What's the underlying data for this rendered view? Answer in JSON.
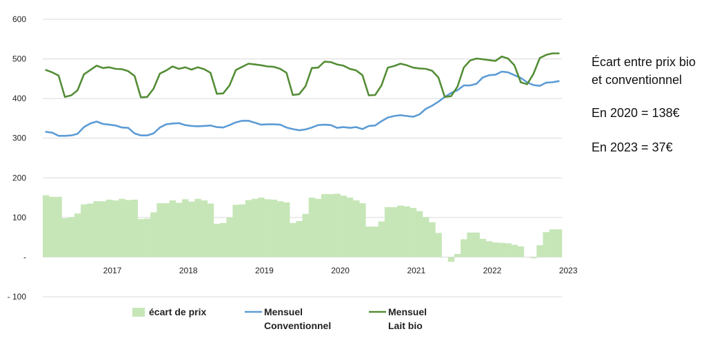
{
  "chart_data": {
    "type": "line",
    "ylim": [
      -100,
      600
    ],
    "yticks": [
      {
        "value": 600,
        "label": "600"
      },
      {
        "value": 500,
        "label": "500"
      },
      {
        "value": 400,
        "label": "400"
      },
      {
        "value": 300,
        "label": "300"
      },
      {
        "value": 200,
        "label": "200"
      },
      {
        "value": 100,
        "label": "100"
      },
      {
        "value": 0,
        "label": "-"
      },
      {
        "value": -100,
        "label": "- 100"
      }
    ],
    "x_start": "2016-08",
    "x_end": "2023-04",
    "year_labels": [
      "2017",
      "2018",
      "2019",
      "2020",
      "2021",
      "2022",
      "2023"
    ],
    "grid": true,
    "series": [
      {
        "name": "écart de prix",
        "kind": "bar",
        "color": "#c6e6b8",
        "values": [
          156,
          152,
          152,
          98,
          101,
          110,
          133,
          135,
          141,
          141,
          145,
          143,
          147,
          144,
          145,
          96,
          97,
          113,
          136,
          136,
          143,
          137,
          146,
          140,
          147,
          143,
          135,
          84,
          86,
          100,
          132,
          133,
          144,
          147,
          150,
          146,
          145,
          141,
          138,
          86,
          91,
          109,
          150,
          147,
          159,
          159,
          160,
          155,
          150,
          143,
          136,
          77,
          77,
          90,
          126,
          126,
          130,
          128,
          124,
          116,
          101,
          88,
          61,
          0,
          -12,
          8,
          45,
          62,
          62,
          46,
          40,
          37,
          36,
          35,
          31,
          27,
          0,
          -3,
          30,
          63,
          70,
          70
        ]
      },
      {
        "name": "Mensuel Conventionnel",
        "kind": "line",
        "color": "#5b9bd5",
        "values": [
          316,
          314,
          306,
          306,
          307,
          311,
          328,
          337,
          342,
          336,
          334,
          332,
          327,
          326,
          312,
          307,
          307,
          312,
          327,
          335,
          337,
          338,
          333,
          331,
          330,
          331,
          332,
          328,
          327,
          333,
          340,
          344,
          344,
          339,
          334,
          335,
          335,
          334,
          327,
          323,
          320,
          322,
          327,
          333,
          334,
          333,
          326,
          328,
          326,
          328,
          323,
          331,
          332,
          343,
          352,
          356,
          358,
          356,
          354,
          360,
          374,
          382,
          392,
          404,
          414,
          421,
          433,
          433,
          437,
          453,
          459,
          460,
          468,
          466,
          459,
          452,
          441,
          434,
          432,
          440,
          441,
          444
        ]
      },
      {
        "name": "Mensuel Lait bio",
        "kind": "line",
        "color": "#538d35",
        "values": [
          472,
          466,
          458,
          404,
          408,
          421,
          461,
          472,
          483,
          477,
          479,
          475,
          474,
          469,
          457,
          403,
          404,
          425,
          463,
          471,
          481,
          475,
          479,
          473,
          479,
          474,
          465,
          412,
          413,
          433,
          472,
          480,
          488,
          486,
          484,
          481,
          480,
          475,
          465,
          409,
          411,
          431,
          477,
          478,
          493,
          492,
          486,
          483,
          475,
          471,
          459,
          408,
          409,
          433,
          478,
          482,
          488,
          484,
          478,
          476,
          475,
          470,
          453,
          404,
          406,
          430,
          478,
          496,
          501,
          499,
          497,
          495,
          506,
          501,
          484,
          441,
          436,
          462,
          502,
          510,
          514,
          514
        ]
      }
    ],
    "legend": [
      {
        "label": "écart de prix",
        "label2": "",
        "kind": "bar",
        "color": "#c6e6b8"
      },
      {
        "label": "Mensuel",
        "label2": "Conventionnel",
        "kind": "line",
        "color": "#5b9bd5"
      },
      {
        "label": "Mensuel",
        "label2": "Lait bio",
        "kind": "line",
        "color": "#538d35"
      }
    ]
  },
  "annotation": {
    "title_line1": "Écart entre prix bio",
    "title_line2": "et conventionnel",
    "line_2020": "En 2020 = 138€",
    "line_2023": "En 2023 = 37€"
  }
}
